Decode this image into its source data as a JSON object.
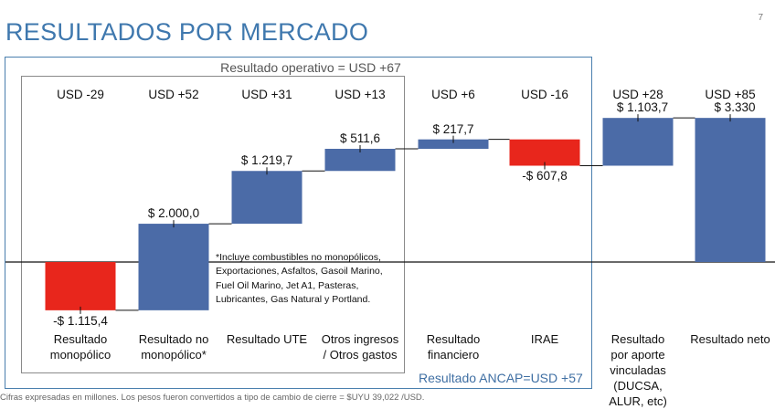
{
  "slide": {
    "title": "RESULTADOS POR MERCADO",
    "page_number": "7"
  },
  "boxes": {
    "outer_label": "Resultado operativo = USD +67",
    "inner_label": "Resultado ANCAP=USD +57"
  },
  "note": "*Incluye combustibles no monopólicos, Exportaciones, Asfaltos, Gasoil Marino, Fuel Oil Marino, Jet A1, Pasteras, Lubricantes, Gas Natural y Portland.",
  "footnote": "Cifras expresadas en millones. Los pesos fueron convertidos a tipo de cambio de cierre = $UYU 39,022 /USD.",
  "colors": {
    "positive": "#4b6ba7",
    "negative": "#e8261c",
    "title": "#3f78ae"
  },
  "chart_data": {
    "type": "bar",
    "subtype": "waterfall",
    "categories": [
      "Resultado\nmonopólico",
      "Resultado no\nmonopólico*",
      "Resultado UTE",
      "Otros ingresos\n/ Otros gastos",
      "Resultado\nfinanciero",
      "IRAE",
      "Resultado\npor aporte\nvinculadas\n(DUCSA,\nALUR, etc)",
      "Resultado neto"
    ],
    "values": [
      -1115.4,
      2000.0,
      1219.7,
      511.6,
      217.7,
      -607.8,
      1103.7,
      3330
    ],
    "value_labels": [
      "-$ 1.115,4",
      "$ 2.000,0",
      "$ 1.219,7",
      "$ 511,6",
      "$ 217,7",
      "-$ 607,8",
      "$ 1.103,7",
      "$ 3.330"
    ],
    "usd_labels": [
      "USD -29",
      "USD +52",
      "USD +31",
      "USD +13",
      "USD +6",
      "USD -16",
      "USD +28",
      "USD +85"
    ],
    "total_index": 7,
    "ylim": [
      -1400,
      4000
    ],
    "grid": false,
    "legend": "none"
  }
}
